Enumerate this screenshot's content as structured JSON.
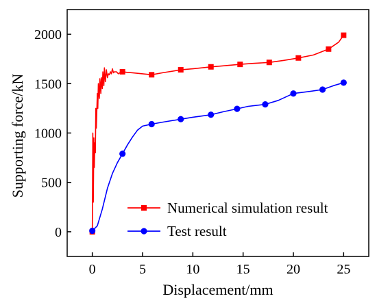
{
  "chart_data": {
    "type": "line",
    "xlabel": "Displacement/mm",
    "ylabel": "Supporting force/kN",
    "xlim": [
      -2.5,
      27.5
    ],
    "ylim": [
      -250,
      2250
    ],
    "xticks": [
      0,
      5,
      10,
      15,
      20,
      25
    ],
    "yticks": [
      0,
      500,
      1000,
      1500,
      2000
    ],
    "grid": false,
    "legend_position": "bottom-right",
    "series": [
      {
        "name": "Numerical simulation result",
        "color": "#ff0000",
        "marker": "square",
        "x": [
          0,
          0.05,
          0.1,
          0.15,
          0.2,
          0.25,
          0.3,
          0.35,
          0.4,
          0.5,
          0.55,
          0.6,
          0.7,
          0.75,
          0.85,
          0.9,
          1.0,
          1.05,
          1.15,
          1.2,
          1.3,
          1.4,
          1.5,
          1.6,
          1.7,
          1.8,
          1.9,
          2.0,
          2.1,
          2.2,
          2.4,
          2.6,
          2.8,
          3.0,
          3.4,
          4.0,
          5.0,
          5.9,
          7.0,
          8.8,
          10.0,
          11.8,
          13.0,
          14.7,
          16.0,
          17.6,
          19.0,
          20.5,
          22.0,
          23.5,
          24.5,
          25.0
        ],
        "y": [
          0,
          1000,
          300,
          950,
          650,
          900,
          800,
          1250,
          1050,
          1400,
          1250,
          1500,
          1350,
          1550,
          1400,
          1560,
          1450,
          1620,
          1480,
          1660,
          1520,
          1640,
          1560,
          1600,
          1590,
          1620,
          1600,
          1650,
          1610,
          1620,
          1620,
          1600,
          1615,
          1620,
          1615,
          1610,
          1600,
          1590,
          1610,
          1640,
          1650,
          1670,
          1680,
          1695,
          1705,
          1715,
          1735,
          1760,
          1790,
          1850,
          1920,
          1990
        ],
        "marker_x": [
          0,
          3.0,
          5.9,
          8.8,
          11.8,
          14.7,
          17.6,
          20.5,
          23.5,
          25.0
        ],
        "marker_y": [
          0,
          1620,
          1590,
          1640,
          1670,
          1695,
          1715,
          1760,
          1850,
          1990
        ]
      },
      {
        "name": "Test result",
        "color": "#0000ff",
        "marker": "circle",
        "x": [
          0,
          0.5,
          1.0,
          1.5,
          2.0,
          2.5,
          3.0,
          3.5,
          4.0,
          4.5,
          5.0,
          5.9,
          7.0,
          8.8,
          10.0,
          11.8,
          13.0,
          14.4,
          15.5,
          17.2,
          18.5,
          20.0,
          21.5,
          22.9,
          24.0,
          25.0
        ],
        "y": [
          10,
          60,
          230,
          440,
          590,
          700,
          790,
          880,
          960,
          1030,
          1070,
          1090,
          1110,
          1140,
          1160,
          1185,
          1215,
          1245,
          1270,
          1290,
          1330,
          1400,
          1420,
          1440,
          1480,
          1510
        ],
        "marker_x": [
          0,
          3.0,
          5.9,
          8.8,
          11.8,
          14.4,
          17.2,
          20.0,
          22.9,
          25.0
        ],
        "marker_y": [
          10,
          790,
          1090,
          1140,
          1185,
          1245,
          1290,
          1400,
          1440,
          1510
        ]
      }
    ]
  }
}
